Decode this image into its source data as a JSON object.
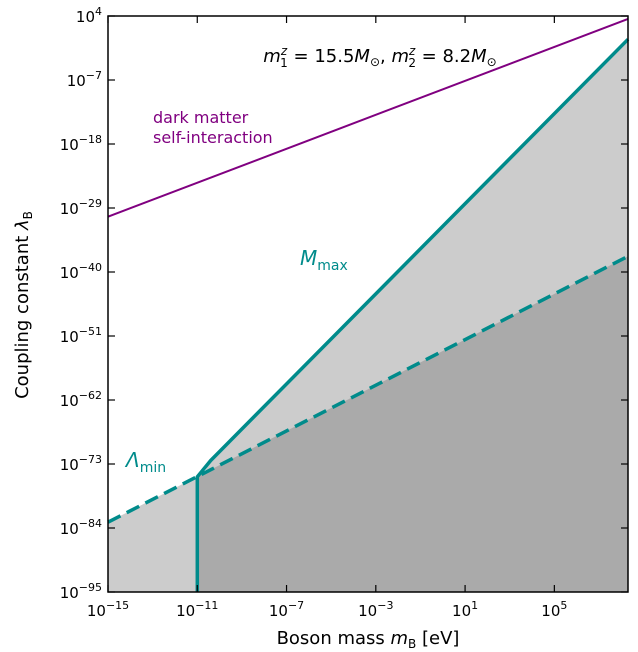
{
  "chart_data": {
    "type": "line",
    "title_html": "m1z = 15.5 Msun, m2z = 8.2 Msun",
    "title_parts": {
      "m1": "m",
      "m1_sup": "z",
      "m1_sub": "1",
      "eq1": " = 15.5",
      "msun1": "M",
      "sun1": "⊙",
      "comma": ", ",
      "m2": "m",
      "m2_sup": "z",
      "m2_sub": "2",
      "eq2": " = 8.2",
      "msun2": "M",
      "sun2": "⊙"
    },
    "xlabel_text": "Boson mass ",
    "xlabel_var": "m",
    "xlabel_sub": "B",
    "xlabel_unit": " [eV]",
    "ylabel_text": "Coupling constant ",
    "ylabel_var": "λ",
    "ylabel_sub": "B",
    "x_scale": "log",
    "y_scale": "log",
    "xlim_log10": [
      -15,
      8.3
    ],
    "ylim_log10": [
      -95,
      4
    ],
    "x_ticks": [
      {
        "base": "10",
        "exp": "−15",
        "log": -15
      },
      {
        "base": "10",
        "exp": "−11",
        "log": -11
      },
      {
        "base": "10",
        "exp": "−7",
        "log": -7
      },
      {
        "base": "10",
        "exp": "−3",
        "log": -3
      },
      {
        "base": "10",
        "exp": "1",
        "log": 1
      },
      {
        "base": "10",
        "exp": "5",
        "log": 5
      }
    ],
    "y_ticks": [
      {
        "base": "10",
        "exp": "4",
        "log": 4
      },
      {
        "base": "10",
        "exp": "−7",
        "log": -7
      },
      {
        "base": "10",
        "exp": "−18",
        "log": -18
      },
      {
        "base": "10",
        "exp": "−29",
        "log": -29
      },
      {
        "base": "10",
        "exp": "−40",
        "log": -40
      },
      {
        "base": "10",
        "exp": "−51",
        "log": -51
      },
      {
        "base": "10",
        "exp": "−62",
        "log": -62
      },
      {
        "base": "10",
        "exp": "−73",
        "log": -73
      },
      {
        "base": "10",
        "exp": "−84",
        "log": -84
      },
      {
        "base": "10",
        "exp": "−95",
        "log": -95
      }
    ],
    "series": [
      {
        "name": "dark matter self-interaction",
        "label_line1": "dark matter",
        "label_line2": "self-interaction",
        "color": "#800080",
        "style": "solid",
        "points_log10": [
          [
            -15,
            -30.5
          ],
          [
            8.3,
            3.5
          ]
        ]
      },
      {
        "name": "M_max",
        "label_var": "M",
        "label_sub": "max",
        "color": "#008B8B",
        "style": "solid",
        "points_log10": [
          [
            -11,
            -95
          ],
          [
            -11,
            -75.2
          ],
          [
            -10.4,
            -72.4
          ],
          [
            8.3,
            0
          ]
        ]
      },
      {
        "name": "Lambda_min",
        "label_var": "Λ",
        "label_sub": "min",
        "color": "#008B8B",
        "style": "dashed",
        "points_log10": [
          [
            -15,
            -83
          ],
          [
            8.3,
            -37.3
          ]
        ]
      }
    ],
    "regions": [
      {
        "name": "light-gray excluded region",
        "color": "#cccccc"
      },
      {
        "name": "dark-gray excluded region",
        "color": "#aaaaaa"
      }
    ]
  }
}
